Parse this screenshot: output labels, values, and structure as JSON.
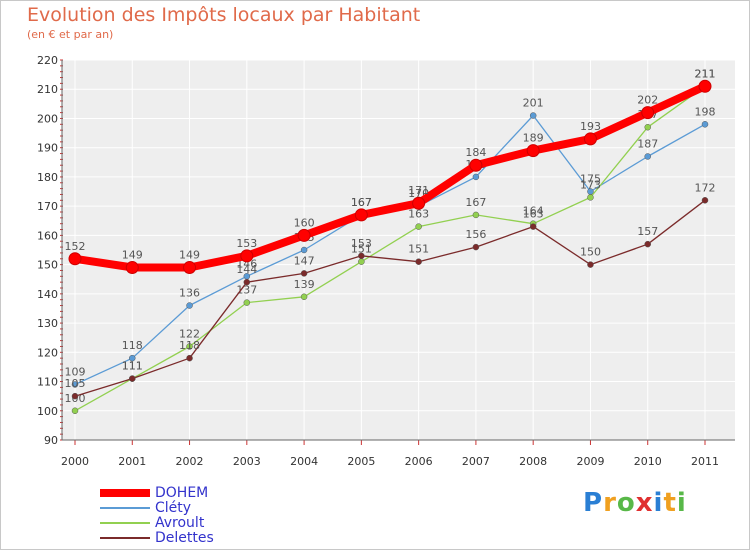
{
  "chart_data": {
    "type": "line",
    "title": "Evolution des Impôts locaux par Habitant",
    "subtitle": "(en € et par an)",
    "xlabel": "",
    "ylabel": "",
    "categories": [
      "2000",
      "2001",
      "2002",
      "2003",
      "2004",
      "2005",
      "2006",
      "2007",
      "2008",
      "2009",
      "2010",
      "2011"
    ],
    "ylim": [
      90,
      220
    ],
    "yticks": [
      90,
      100,
      110,
      120,
      130,
      140,
      150,
      160,
      170,
      180,
      190,
      200,
      210,
      220
    ],
    "grid": true,
    "legend_position": "bottom-left",
    "series": [
      {
        "name": "DOHEM",
        "color": "#ff0000",
        "values": [
          152,
          149,
          149,
          153,
          160,
          167,
          171,
          184,
          189,
          193,
          202,
          211
        ]
      },
      {
        "name": "Cléty",
        "color": "#5b9bd5",
        "values": [
          109,
          118,
          136,
          146,
          155,
          167,
          170,
          180,
          201,
          175,
          187,
          198
        ]
      },
      {
        "name": "Avroult",
        "color": "#92d050",
        "values": [
          100,
          111,
          122,
          137,
          139,
          151,
          163,
          167,
          164,
          173,
          197,
          211
        ]
      },
      {
        "name": "Delettes",
        "color": "#7b2b2b",
        "values": [
          105,
          111,
          118,
          144,
          147,
          153,
          151,
          156,
          163,
          150,
          157,
          172
        ]
      }
    ]
  },
  "logo": {
    "letters": [
      "P",
      "r",
      "o",
      "x",
      "i",
      "t",
      "i"
    ],
    "colors": [
      "#2a7fd4",
      "#f0a020",
      "#58b848",
      "#e03030",
      "#2a7fd4",
      "#f0a020",
      "#58b848"
    ]
  }
}
